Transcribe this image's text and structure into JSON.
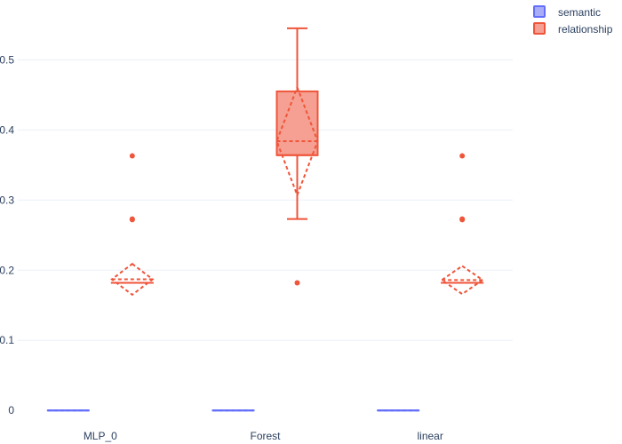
{
  "chart_data": {
    "type": "box",
    "categories": [
      "MLP_0",
      "Forest",
      "linear"
    ],
    "ylim": [
      -0.02,
      0.56
    ],
    "yticks": [
      0,
      0.1,
      0.2,
      0.3,
      0.4,
      0.5
    ],
    "ytick_labels": [
      "0",
      "0.1",
      "0.2",
      "0.3",
      "0.4",
      "0.5"
    ],
    "grid": true,
    "legend_position": "top-right",
    "series": [
      {
        "name": "semantic",
        "color": "#636efa",
        "fill": "#a9adf7",
        "boxes": [
          {
            "category": "MLP_0",
            "q1": 0,
            "median": 0,
            "q3": 0,
            "lower_whisker": 0,
            "upper_whisker": 0,
            "mean": 0,
            "sd": 0,
            "outliers": []
          },
          {
            "category": "Forest",
            "q1": 0,
            "median": 0,
            "q3": 0,
            "lower_whisker": 0,
            "upper_whisker": 0,
            "mean": 0,
            "sd": 0,
            "outliers": []
          },
          {
            "category": "linear",
            "q1": 0,
            "median": 0,
            "q3": 0,
            "lower_whisker": 0,
            "upper_whisker": 0,
            "mean": 0,
            "sd": 0,
            "outliers": []
          }
        ]
      },
      {
        "name": "relationship",
        "color": "#ef553b",
        "fill": "#f5a092",
        "boxes": [
          {
            "category": "MLP_0",
            "q1": 0.182,
            "median": 0.182,
            "q3": 0.182,
            "lower_whisker": 0.182,
            "upper_whisker": 0.182,
            "mean": 0.187,
            "sd": 0.022,
            "outliers": [
              0.363,
              0.273,
              0.272
            ]
          },
          {
            "category": "Forest",
            "q1": 0.364,
            "median": 0.364,
            "q3": 0.455,
            "lower_whisker": 0.273,
            "upper_whisker": 0.545,
            "mean": 0.384,
            "sd": 0.077,
            "outliers": [
              0.182
            ]
          },
          {
            "category": "linear",
            "q1": 0.182,
            "median": 0.182,
            "q3": 0.182,
            "lower_whisker": 0.182,
            "upper_whisker": 0.182,
            "mean": 0.186,
            "sd": 0.02,
            "outliers": [
              0.363,
              0.273,
              0.272
            ]
          }
        ]
      }
    ]
  }
}
